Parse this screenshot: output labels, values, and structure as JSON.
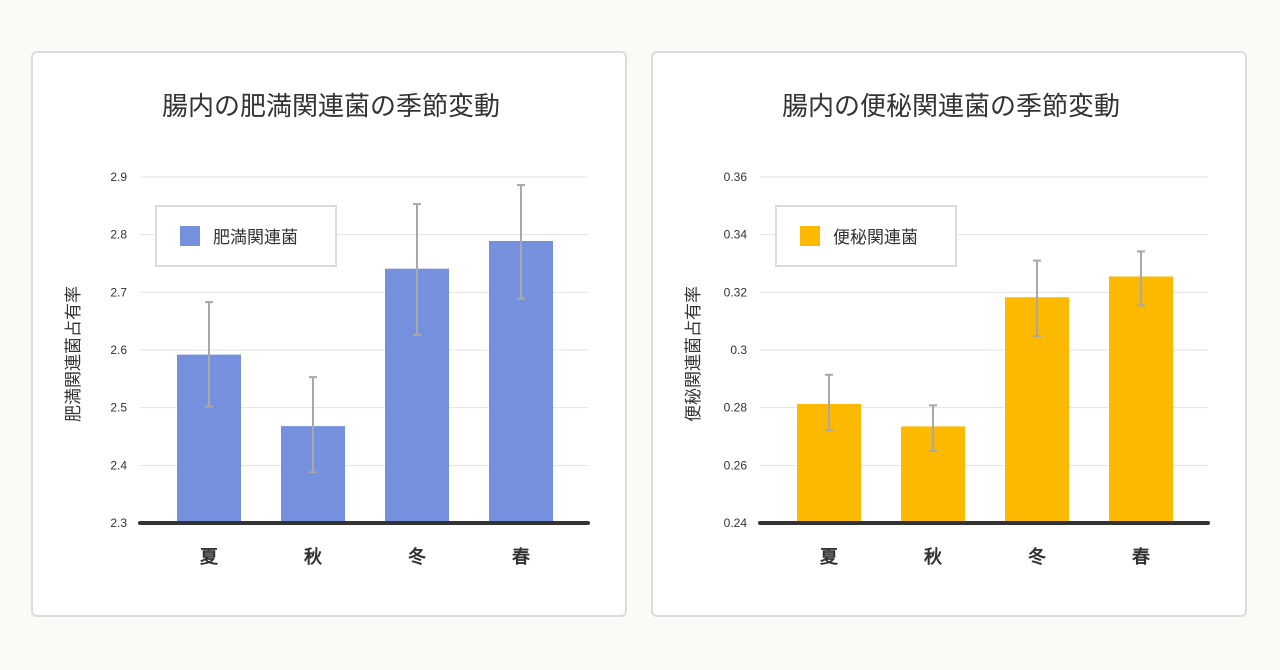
{
  "chart_data": [
    {
      "type": "bar",
      "title": "腸内の肥満関連菌の季節変動",
      "xlabel": "",
      "ylabel": "肥満関連菌占有率",
      "categories": [
        "夏",
        "秋",
        "冬",
        "春"
      ],
      "series": [
        {
          "name": "肥満関連菌",
          "values": [
            2.592,
            2.468,
            2.741,
            2.789
          ],
          "error_low": [
            2.502,
            2.388,
            2.626,
            2.689
          ],
          "error_high": [
            2.683,
            2.553,
            2.853,
            2.886
          ]
        }
      ],
      "ylim": [
        2.3,
        2.9
      ],
      "yticks": [
        "2.3",
        "2.4",
        "2.5",
        "2.6",
        "2.7",
        "2.8",
        "2.9"
      ],
      "color": "#7590dd",
      "grid": true,
      "legend_position": "top-left"
    },
    {
      "type": "bar",
      "title": "腸内の便秘関連菌の季節変動",
      "xlabel": "",
      "ylabel": "便秘関連菌占有率",
      "categories": [
        "夏",
        "秋",
        "冬",
        "春"
      ],
      "series": [
        {
          "name": "便秘関連菌",
          "values": [
            0.2813,
            0.2735,
            0.3183,
            0.3255
          ],
          "error_low": [
            0.2722,
            0.265,
            0.3048,
            0.3155
          ],
          "error_high": [
            0.2914,
            0.2808,
            0.331,
            0.3342
          ]
        }
      ],
      "ylim": [
        0.24,
        0.36
      ],
      "yticks": [
        "0.24",
        "0.26",
        "0.28",
        "0.3",
        "0.32",
        "0.34",
        "0.36"
      ],
      "color": "#fbb900",
      "grid": true,
      "legend_position": "top-left"
    }
  ]
}
